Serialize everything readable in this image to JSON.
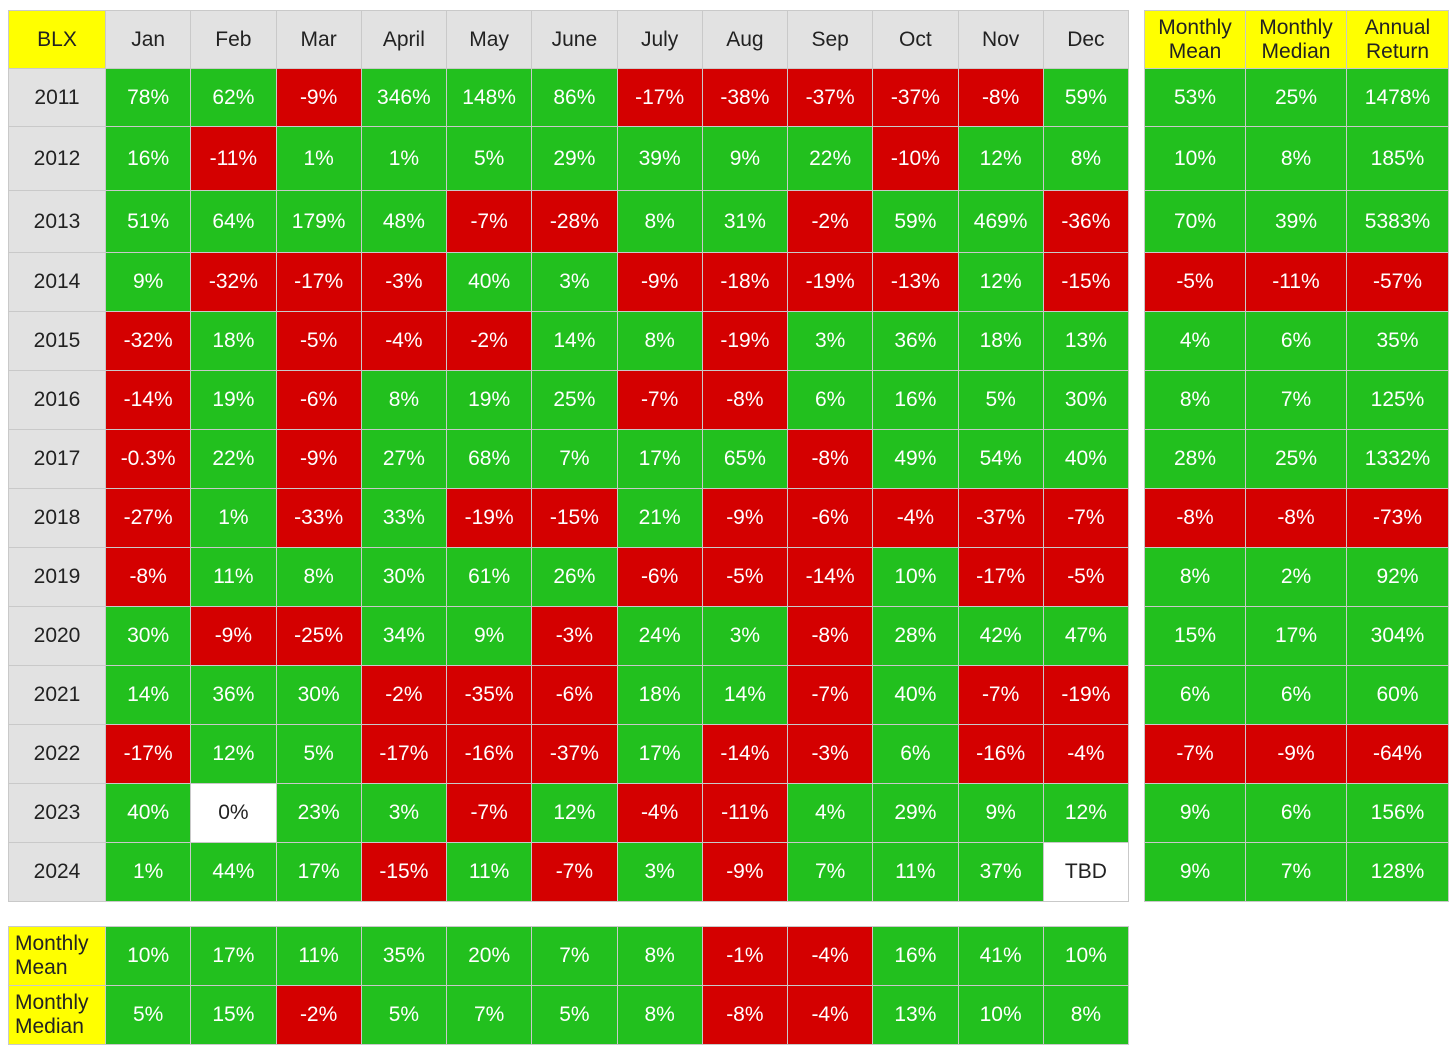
{
  "chart_data": {
    "type": "table",
    "ticker": "BLX",
    "months": [
      "Jan",
      "Feb",
      "Mar",
      "April",
      "May",
      "June",
      "July",
      "Aug",
      "Sep",
      "Oct",
      "Nov",
      "Dec"
    ],
    "stat_headers": [
      "Monthly Mean",
      "Monthly Median",
      "Annual Return"
    ],
    "rows": [
      {
        "year": "2011",
        "values": [
          "78%",
          "62%",
          "-9%",
          "346%",
          "148%",
          "86%",
          "-17%",
          "-38%",
          "-37%",
          "-37%",
          "-8%",
          "59%"
        ],
        "stats": [
          "53%",
          "25%",
          "1478%"
        ]
      },
      {
        "year": "2012",
        "values": [
          "16%",
          "-11%",
          "1%",
          "1%",
          "5%",
          "29%",
          "39%",
          "9%",
          "22%",
          "-10%",
          "12%",
          "8%"
        ],
        "stats": [
          "10%",
          "8%",
          "185%"
        ]
      },
      {
        "year": "2013",
        "values": [
          "51%",
          "64%",
          "179%",
          "48%",
          "-7%",
          "-28%",
          "8%",
          "31%",
          "-2%",
          "59%",
          "469%",
          "-36%"
        ],
        "stats": [
          "70%",
          "39%",
          "5383%"
        ]
      },
      {
        "year": "2014",
        "values": [
          "9%",
          "-32%",
          "-17%",
          "-3%",
          "40%",
          "3%",
          "-9%",
          "-18%",
          "-19%",
          "-13%",
          "12%",
          "-15%"
        ],
        "stats": [
          "-5%",
          "-11%",
          "-57%"
        ]
      },
      {
        "year": "2015",
        "values": [
          "-32%",
          "18%",
          "-5%",
          "-4%",
          "-2%",
          "14%",
          "8%",
          "-19%",
          "3%",
          "36%",
          "18%",
          "13%"
        ],
        "stats": [
          "4%",
          "6%",
          "35%"
        ]
      },
      {
        "year": "2016",
        "values": [
          "-14%",
          "19%",
          "-6%",
          "8%",
          "19%",
          "25%",
          "-7%",
          "-8%",
          "6%",
          "16%",
          "5%",
          "30%"
        ],
        "stats": [
          "8%",
          "7%",
          "125%"
        ]
      },
      {
        "year": "2017",
        "values": [
          "-0.3%",
          "22%",
          "-9%",
          "27%",
          "68%",
          "7%",
          "17%",
          "65%",
          "-8%",
          "49%",
          "54%",
          "40%"
        ],
        "stats": [
          "28%",
          "25%",
          "1332%"
        ]
      },
      {
        "year": "2018",
        "values": [
          "-27%",
          "1%",
          "-33%",
          "33%",
          "-19%",
          "-15%",
          "21%",
          "-9%",
          "-6%",
          "-4%",
          "-37%",
          "-7%"
        ],
        "stats": [
          "-8%",
          "-8%",
          "-73%"
        ]
      },
      {
        "year": "2019",
        "values": [
          "-8%",
          "11%",
          "8%",
          "30%",
          "61%",
          "26%",
          "-6%",
          "-5%",
          "-14%",
          "10%",
          "-17%",
          "-5%"
        ],
        "stats": [
          "8%",
          "2%",
          "92%"
        ]
      },
      {
        "year": "2020",
        "values": [
          "30%",
          "-9%",
          "-25%",
          "34%",
          "9%",
          "-3%",
          "24%",
          "3%",
          "-8%",
          "28%",
          "42%",
          "47%"
        ],
        "stats": [
          "15%",
          "17%",
          "304%"
        ]
      },
      {
        "year": "2021",
        "values": [
          "14%",
          "36%",
          "30%",
          "-2%",
          "-35%",
          "-6%",
          "18%",
          "14%",
          "-7%",
          "40%",
          "-7%",
          "-19%"
        ],
        "stats": [
          "6%",
          "6%",
          "60%"
        ]
      },
      {
        "year": "2022",
        "values": [
          "-17%",
          "12%",
          "5%",
          "-17%",
          "-16%",
          "-37%",
          "17%",
          "-14%",
          "-3%",
          "6%",
          "-16%",
          "-4%"
        ],
        "stats": [
          "-7%",
          "-9%",
          "-64%"
        ]
      },
      {
        "year": "2023",
        "values": [
          "40%",
          "0%",
          "23%",
          "3%",
          "-7%",
          "12%",
          "-4%",
          "-11%",
          "4%",
          "29%",
          "9%",
          "12%"
        ],
        "stats": [
          "9%",
          "6%",
          "156%"
        ]
      },
      {
        "year": "2024",
        "values": [
          "1%",
          "44%",
          "17%",
          "-15%",
          "11%",
          "-7%",
          "3%",
          "-9%",
          "7%",
          "11%",
          "37%",
          "TBD"
        ],
        "stats": [
          "9%",
          "7%",
          "128%"
        ]
      }
    ],
    "footer": [
      {
        "label": "Monthly Mean",
        "values": [
          "10%",
          "17%",
          "11%",
          "35%",
          "20%",
          "7%",
          "8%",
          "-1%",
          "-4%",
          "16%",
          "41%",
          "10%"
        ]
      },
      {
        "label": "Monthly Median",
        "values": [
          "5%",
          "15%",
          "-2%",
          "5%",
          "7%",
          "5%",
          "8%",
          "-8%",
          "-4%",
          "13%",
          "10%",
          "8%"
        ]
      }
    ],
    "colors": {
      "positive": "#22c01e",
      "negative": "#d40000",
      "neutral": "#ffffff",
      "header_highlight": "#ffff00",
      "header_gray": "#e2e2e2"
    }
  }
}
